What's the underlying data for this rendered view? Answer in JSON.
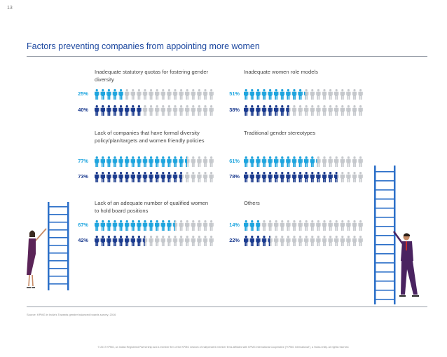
{
  "page_number": "13",
  "title": "Factors preventing companies from appointing more women",
  "source": "Source: KPMG in India's Towards gender balanced boards survey, 2016",
  "footer": "© 2017 KPMG, an Indian Registered Partnership and a member firm of the KPMG network of independent member firms affiliated with KPMG International Cooperative (\"KPMG International\"), a Swiss entity. All rights reserved.",
  "colors": {
    "title": "#1e49a0",
    "series_light": "#1da5df",
    "series_dark": "#1b3b8f",
    "inactive": "#c5c8cc",
    "ladder": "#2b6fc8"
  },
  "chart_data": {
    "type": "bar",
    "icons_per_row": 20,
    "series_colors": [
      "#1da5df",
      "#1b3b8f"
    ],
    "panels": [
      {
        "title": "Inadequate statutory quotas for fostering gender diversity",
        "values": [
          25,
          40
        ]
      },
      {
        "title": "Inadequate women role models",
        "values": [
          51,
          38
        ]
      },
      {
        "title": "Lack of companies that have formal diversity policy/plan/targets and women friendly policies",
        "values": [
          77,
          73
        ]
      },
      {
        "title": "Traditional gender stereotypes",
        "values": [
          61,
          78
        ]
      },
      {
        "title": "Lack of an adequate number of qualified women to hold board positions",
        "values": [
          67,
          42
        ]
      },
      {
        "title": "Others",
        "values": [
          14,
          22
        ]
      }
    ],
    "value_labels": [
      [
        "25%",
        "40%"
      ],
      [
        "51%",
        "38%"
      ],
      [
        "77%",
        "73%"
      ],
      [
        "61%",
        "78%"
      ],
      [
        "67%",
        "42%"
      ],
      [
        "14%",
        "22%"
      ]
    ]
  }
}
